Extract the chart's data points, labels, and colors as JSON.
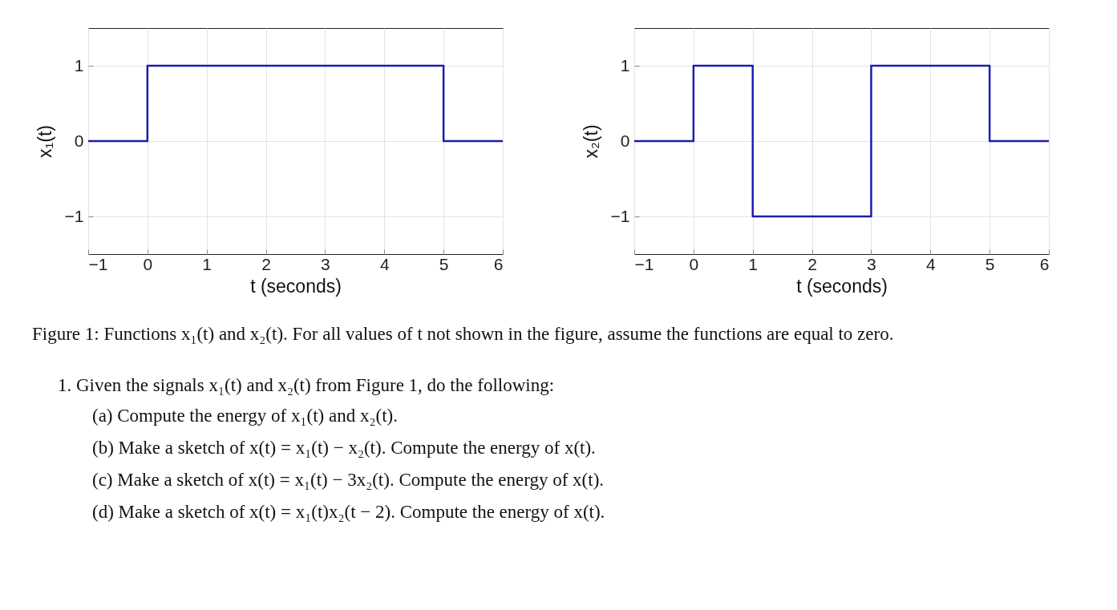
{
  "chart_data": [
    {
      "type": "step",
      "xlabel": "t (seconds)",
      "ylabel": "x₁(t)",
      "x": [
        -1,
        0,
        5,
        6
      ],
      "series": [
        {
          "color": "#1c1cb0",
          "values": [
            0,
            1,
            0,
            0
          ]
        }
      ],
      "xlim": [
        -1,
        6
      ],
      "xticks": [
        -1,
        0,
        1,
        2,
        3,
        4,
        5,
        6
      ],
      "ylim": [
        -1.5,
        1.5
      ],
      "yticks": [
        -1,
        0,
        1
      ],
      "grid": true,
      "legend": false
    },
    {
      "type": "step",
      "xlabel": "t (seconds)",
      "ylabel": "x₂(t)",
      "x": [
        -1,
        0,
        1,
        3,
        5,
        6
      ],
      "series": [
        {
          "color": "#1c1cb0",
          "values": [
            0,
            1,
            -1,
            1,
            0,
            0
          ]
        }
      ],
      "xlim": [
        -1,
        6
      ],
      "xticks": [
        -1,
        0,
        1,
        2,
        3,
        4,
        5,
        6
      ],
      "ylim": [
        -1.5,
        1.5
      ],
      "yticks": [
        -1,
        0,
        1
      ],
      "grid": true,
      "legend": false
    },
    {
      "type": "other",
      "annotations": [
        "Figure 1: Functions x₁(t) and x₂(t). For all values of t not shown in the figure, assume the functions are equal to zero.",
        "1. Given the signals x₁(t) and x₂(t) from Figure 1, do the following:",
        "(a) Compute the energy of x₁(t) and x₂(t).",
        "(b) Make a sketch of x(t) = x₁(t) − x₂(t). Compute the energy of x(t).",
        "(c) Make a sketch of x(t) = x₁(t) − 3x₂(t). Compute the energy of x(t).",
        "(d) Make a sketch of x(t) = x₁(t)x₂(t − 2). Compute the energy of x(t)."
      ]
    }
  ]
}
